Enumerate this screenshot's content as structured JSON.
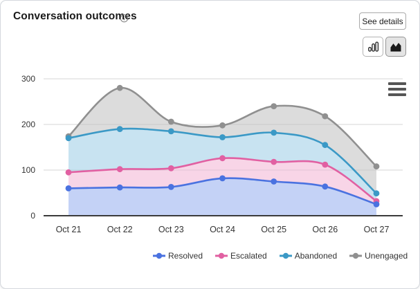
{
  "header": {
    "title": "Conversation outcomes",
    "info_icon": "info-circle-icon",
    "see_details_label": "See details"
  },
  "toolbar": {
    "chart_type_buttons": [
      {
        "name": "column-chart-button",
        "icon": "column-chart-icon",
        "selected": false
      },
      {
        "name": "area-chart-button",
        "icon": "area-chart-icon",
        "selected": true
      }
    ],
    "context_menu_icon": "hamburger-menu-icon"
  },
  "chart_data": {
    "type": "area",
    "title": "Conversation outcomes",
    "categories": [
      "Oct 21",
      "Oct 22",
      "Oct 23",
      "Oct 24",
      "Oct 25",
      "Oct 26",
      "Oct 27"
    ],
    "series": [
      {
        "name": "Resolved",
        "color": "#4a72e0",
        "fill": "#c4d2f6",
        "values": [
          60,
          62,
          63,
          82,
          75,
          64,
          25
        ]
      },
      {
        "name": "Escalated",
        "color": "#e160a2",
        "fill": "#f8d5e7",
        "values": [
          95,
          102,
          104,
          126,
          118,
          112,
          32
        ]
      },
      {
        "name": "Abandoned",
        "color": "#3b99c6",
        "fill": "#c8e3f1",
        "values": [
          170,
          190,
          185,
          172,
          182,
          155,
          49
        ]
      },
      {
        "name": "Unengaged",
        "color": "#909090",
        "fill": "#dcdcdc",
        "values": [
          174,
          280,
          206,
          198,
          240,
          218,
          108
        ]
      }
    ],
    "ylim": [
      0,
      300
    ],
    "yticks": [
      0,
      100,
      200,
      300
    ],
    "grid": true,
    "legend_position": "bottom",
    "colors": {
      "grid_line": "#e7e7e7",
      "axis_line": "#3a3a3a",
      "tick_text": "#333333"
    }
  }
}
